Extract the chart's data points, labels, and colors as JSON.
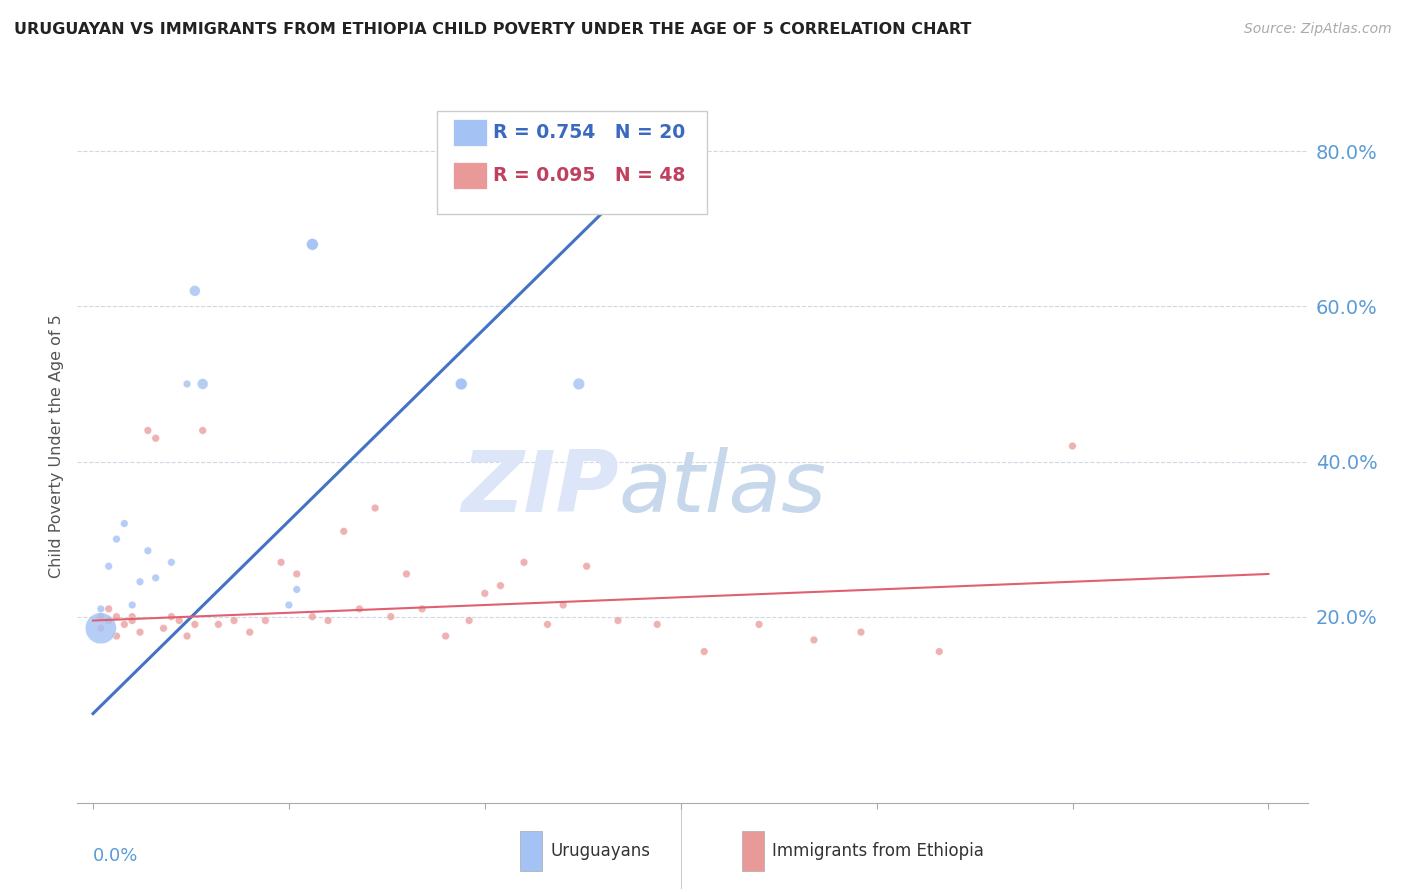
{
  "title": "URUGUAYAN VS IMMIGRANTS FROM ETHIOPIA CHILD POVERTY UNDER THE AGE OF 5 CORRELATION CHART",
  "source": "Source: ZipAtlas.com",
  "ylabel": "Child Poverty Under the Age of 5",
  "legend_blue_r": "R = 0.754",
  "legend_blue_n": "N = 20",
  "legend_pink_r": "R = 0.095",
  "legend_pink_n": "N = 48",
  "blue_color": "#a4c2f4",
  "pink_color": "#ea9999",
  "blue_line_color": "#4472c4",
  "pink_line_color": "#e06070",
  "watermark_zip": "ZIP",
  "watermark_atlas": "atlas",
  "watermark_color_zip": "#dce6f8",
  "watermark_color_atlas": "#c8d8ec",
  "xlim": [
    -0.002,
    0.155
  ],
  "ylim": [
    -0.04,
    0.88
  ],
  "ytick_vals": [
    0.2,
    0.4,
    0.6,
    0.8
  ],
  "ytick_labels": [
    "20.0%",
    "40.0%",
    "60.0%",
    "80.0%"
  ],
  "xtick_vals": [
    0.0,
    0.025,
    0.05,
    0.075,
    0.1,
    0.125,
    0.15
  ],
  "blue_trend_x": [
    0.0,
    0.075
  ],
  "blue_trend_y": [
    0.075,
    0.82
  ],
  "pink_trend_x": [
    0.0,
    0.15
  ],
  "pink_trend_y": [
    0.195,
    0.255
  ],
  "uruguayan_x": [
    0.001,
    0.001,
    0.002,
    0.003,
    0.004,
    0.005,
    0.006,
    0.007,
    0.008,
    0.01,
    0.012,
    0.013,
    0.014,
    0.025,
    0.026,
    0.028,
    0.028,
    0.047,
    0.047,
    0.062
  ],
  "uruguayan_y": [
    0.185,
    0.21,
    0.265,
    0.3,
    0.32,
    0.215,
    0.245,
    0.285,
    0.25,
    0.27,
    0.5,
    0.62,
    0.5,
    0.215,
    0.235,
    0.68,
    0.68,
    0.5,
    0.5,
    0.5
  ],
  "uruguayan_size": [
    500,
    30,
    30,
    30,
    30,
    30,
    30,
    30,
    30,
    30,
    30,
    60,
    60,
    30,
    30,
    70,
    70,
    70,
    70,
    70
  ],
  "ethiopia_x": [
    0.001,
    0.001,
    0.002,
    0.002,
    0.003,
    0.003,
    0.004,
    0.005,
    0.005,
    0.006,
    0.007,
    0.008,
    0.009,
    0.01,
    0.011,
    0.012,
    0.013,
    0.014,
    0.016,
    0.018,
    0.02,
    0.022,
    0.024,
    0.026,
    0.028,
    0.03,
    0.032,
    0.034,
    0.036,
    0.038,
    0.04,
    0.042,
    0.045,
    0.048,
    0.05,
    0.052,
    0.055,
    0.058,
    0.06,
    0.063,
    0.067,
    0.072,
    0.078,
    0.085,
    0.092,
    0.098,
    0.108,
    0.125
  ],
  "ethiopia_y": [
    0.2,
    0.185,
    0.21,
    0.195,
    0.175,
    0.2,
    0.19,
    0.2,
    0.195,
    0.18,
    0.44,
    0.43,
    0.185,
    0.2,
    0.195,
    0.175,
    0.19,
    0.44,
    0.19,
    0.195,
    0.18,
    0.195,
    0.27,
    0.255,
    0.2,
    0.195,
    0.31,
    0.21,
    0.34,
    0.2,
    0.255,
    0.21,
    0.175,
    0.195,
    0.23,
    0.24,
    0.27,
    0.19,
    0.215,
    0.265,
    0.195,
    0.19,
    0.155,
    0.19,
    0.17,
    0.18,
    0.155,
    0.42
  ],
  "ethiopia_size": [
    30,
    30,
    30,
    30,
    30,
    30,
    30,
    30,
    30,
    30,
    30,
    30,
    30,
    30,
    30,
    30,
    30,
    30,
    30,
    30,
    30,
    30,
    30,
    30,
    30,
    30,
    30,
    30,
    30,
    30,
    30,
    30,
    30,
    30,
    30,
    30,
    30,
    30,
    30,
    30,
    30,
    30,
    30,
    30,
    30,
    30,
    30,
    30
  ]
}
